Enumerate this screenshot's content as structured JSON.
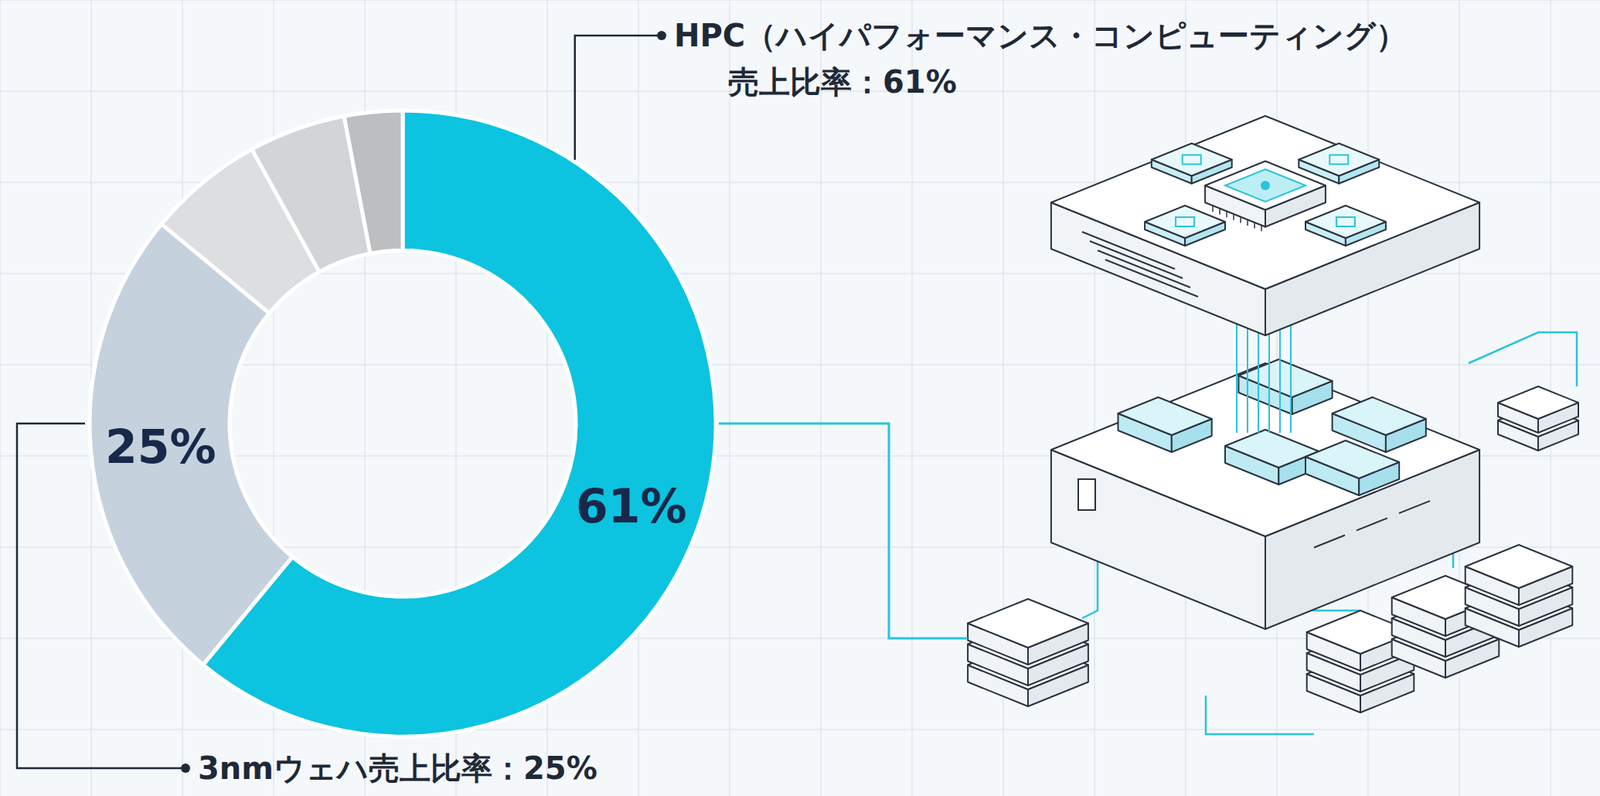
{
  "chart_data": {
    "type": "pie",
    "categories": [
      "HPC（ハイパフォーマンス・コンピューティング）",
      "3nmウェハ",
      null,
      null,
      null
    ],
    "values": [
      61,
      25,
      6,
      5,
      3
    ],
    "value_labels": [
      "61%",
      "25%",
      null,
      null,
      null
    ],
    "data_labels": true,
    "colors": [
      "#0cc3e0",
      "#c5d2de",
      "#dcdee0",
      "#d2d4d6",
      "#bcbec0"
    ],
    "annotations": [
      [
        "HPC（ハイパフォーマンス・コンピューティング）",
        "売上比率：61%"
      ],
      [
        "3nmウェハ売上比率：25%"
      ]
    ]
  }
}
